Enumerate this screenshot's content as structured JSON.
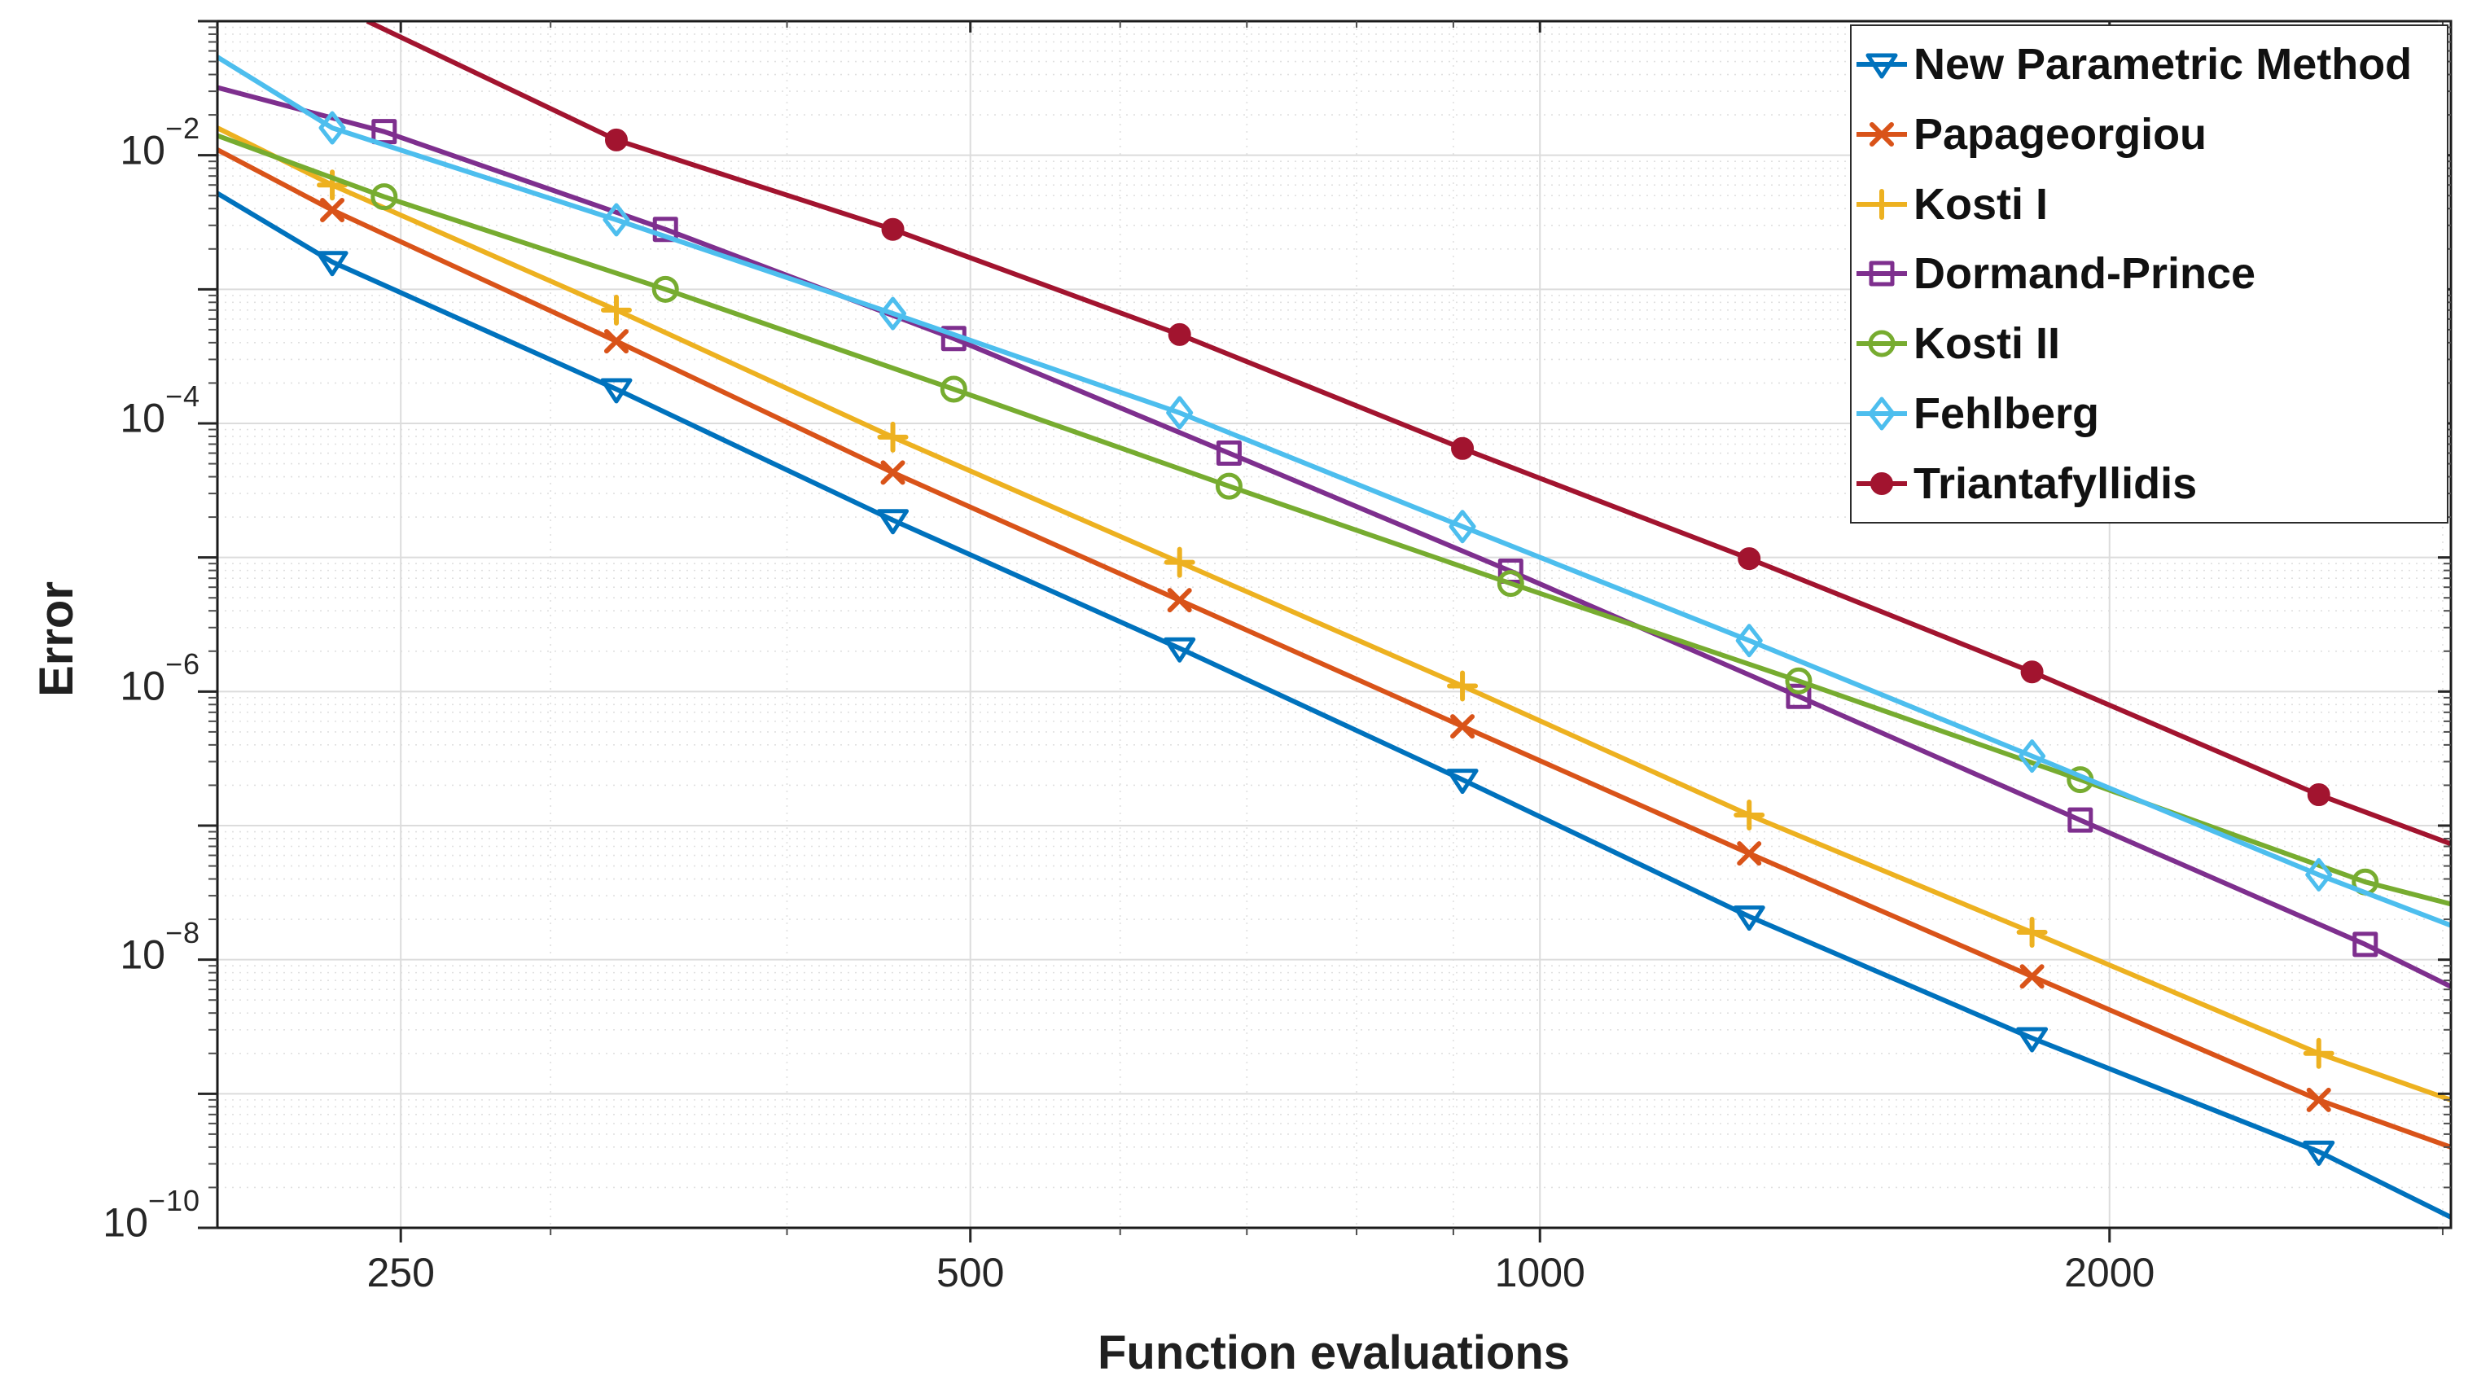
{
  "chart_data": {
    "type": "line",
    "title": "",
    "xlabel": "Function evaluations",
    "ylabel": "Error",
    "x_scale": "log",
    "y_scale": "log",
    "xlim": [
      200,
      3030
    ],
    "ylim": [
      1e-10,
      0.1
    ],
    "grid": {
      "major": true,
      "minor": true
    },
    "legend_position": "top-right",
    "axes": {
      "x_ticks": [
        "250",
        "500",
        "1000",
        "2000"
      ],
      "x_tick_values": [
        250,
        500,
        1000,
        2000
      ],
      "x_minor_ticks": [
        300,
        400,
        600,
        700,
        800,
        900,
        3000
      ],
      "y_ticks": [
        {
          "base": "10",
          "exp": "−2",
          "value": 0.01
        },
        {
          "base": "10",
          "exp": "−4",
          "value": 0.0001
        },
        {
          "base": "10",
          "exp": "−6",
          "value": 1e-06
        },
        {
          "base": "10",
          "exp": "−8",
          "value": 1e-08
        },
        {
          "base": "10",
          "exp": "−10",
          "value": 1e-10
        }
      ]
    },
    "series": [
      {
        "name": "New Parametric Method",
        "color": "#0072BD",
        "marker": "triangle-down",
        "edge_start": [
          200,
          0.0052
        ],
        "points": [
          [
            230,
            0.0016
          ],
          [
            325,
            0.00018
          ],
          [
            455,
            1.9e-05
          ],
          [
            645,
            2.1e-06
          ],
          [
            910,
            2.2e-07
          ],
          [
            1290,
            2.1e-08
          ],
          [
            1820,
            2.6e-09
          ],
          [
            2580,
            3.7e-10
          ]
        ],
        "edge_end": [
          3030,
          1.2e-10
        ]
      },
      {
        "name": "Papageorgiou",
        "color": "#D95319",
        "marker": "x",
        "edge_start": [
          200,
          0.011
        ],
        "points": [
          [
            230,
            0.0039
          ],
          [
            325,
            0.00041
          ],
          [
            455,
            4.3e-05
          ],
          [
            645,
            4.8e-06
          ],
          [
            910,
            5.5e-07
          ],
          [
            1290,
            6.2e-08
          ],
          [
            1820,
            7.5e-09
          ],
          [
            2580,
            9e-10
          ]
        ],
        "edge_end": [
          3030,
          4e-10
        ]
      },
      {
        "name": "Kosti I",
        "color": "#EDB120",
        "marker": "plus",
        "edge_start": [
          200,
          0.016
        ],
        "points": [
          [
            230,
            0.006
          ],
          [
            325,
            0.0007
          ],
          [
            455,
            7.9e-05
          ],
          [
            645,
            9.2e-06
          ],
          [
            910,
            1.1e-06
          ],
          [
            1290,
            1.2e-07
          ],
          [
            1820,
            1.6e-08
          ],
          [
            2580,
            2e-09
          ]
        ],
        "edge_end": [
          3030,
          9e-10
        ]
      },
      {
        "name": "Dormand-Prince",
        "color": "#7E2F8E",
        "marker": "square",
        "edge_start": [
          200,
          0.032
        ],
        "points": [
          [
            245,
            0.015
          ],
          [
            345,
            0.0028
          ],
          [
            490,
            0.00043
          ],
          [
            685,
            6e-05
          ],
          [
            965,
            7.9e-06
          ],
          [
            1370,
            9.2e-07
          ],
          [
            1930,
            1.1e-07
          ],
          [
            2730,
            1.3e-08
          ]
        ],
        "edge_end": [
          3030,
          6.3e-09
        ]
      },
      {
        "name": "Kosti II",
        "color": "#77AC30",
        "marker": "circle",
        "edge_start": [
          200,
          0.014
        ],
        "points": [
          [
            245,
            0.0049
          ],
          [
            345,
            0.001
          ],
          [
            490,
            0.00018
          ],
          [
            685,
            3.4e-05
          ],
          [
            965,
            6.4e-06
          ],
          [
            1370,
            1.2e-06
          ],
          [
            1930,
            2.2e-07
          ],
          [
            2730,
            3.8e-08
          ]
        ],
        "edge_end": [
          3030,
          2.6e-08
        ]
      },
      {
        "name": "Fehlberg",
        "color": "#4DBEEE",
        "marker": "diamond",
        "edge_start": [
          200,
          0.054
        ],
        "points": [
          [
            230,
            0.016
          ],
          [
            325,
            0.0033
          ],
          [
            455,
            0.00066
          ],
          [
            645,
            0.00012
          ],
          [
            910,
            1.7e-05
          ],
          [
            1290,
            2.4e-06
          ],
          [
            1820,
            3.3e-07
          ],
          [
            2580,
            4.3e-08
          ]
        ],
        "edge_end": [
          3030,
          1.8e-08
        ]
      },
      {
        "name": "Triantafyllidis",
        "color": "#A2142F",
        "marker": "point",
        "edge_start": [
          240,
          0.1
        ],
        "points": [
          [
            325,
            0.013
          ],
          [
            455,
            0.0028
          ],
          [
            645,
            0.00046
          ],
          [
            910,
            6.5e-05
          ],
          [
            1290,
            9.8e-06
          ],
          [
            1820,
            1.4e-06
          ],
          [
            2580,
            1.7e-07
          ]
        ],
        "edge_end": [
          3030,
          7.3e-08
        ]
      }
    ]
  }
}
